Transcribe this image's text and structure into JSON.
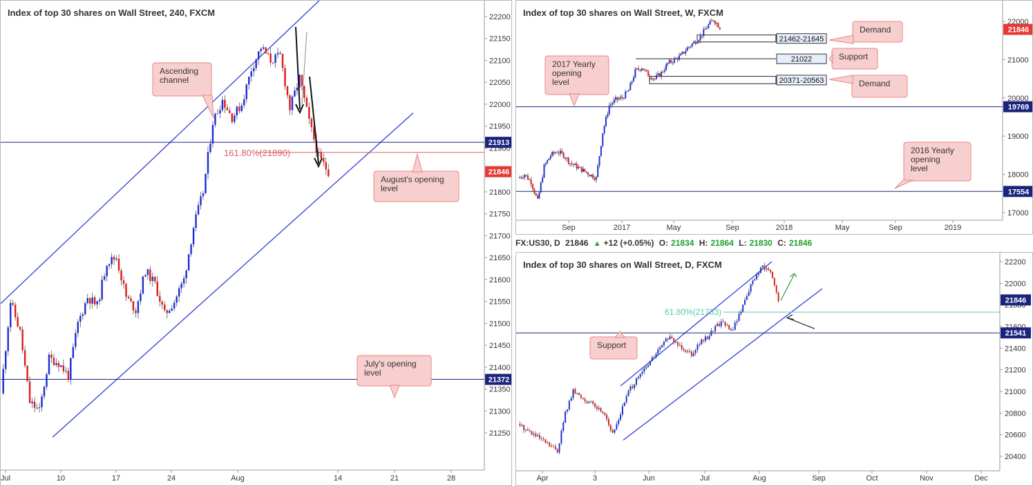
{
  "panels": {
    "h4": {
      "title": "Index of top 30 shares on Wall Street, 240, FXCM",
      "price_ticks": [
        "22200",
        "22150",
        "22100",
        "22050",
        "22000",
        "21950",
        "21900",
        "21850",
        "21800",
        "21750",
        "21700",
        "21650",
        "21600",
        "21550",
        "21500",
        "21450",
        "21400",
        "21350",
        "21300",
        "21250"
      ],
      "time_ticks": [
        "Jul",
        "10",
        "17",
        "24",
        "Aug",
        "14",
        "21",
        "28"
      ],
      "levels": [
        {
          "label": "21913",
          "color": "#1a237e"
        },
        {
          "label": "21846",
          "color": "#e53935"
        },
        {
          "label": "21372",
          "color": "#1a237e"
        }
      ],
      "fib_label": "161.80%(21890)",
      "annotations": {
        "ascending_channel": "Ascending channel",
        "august_open": "August's opening level",
        "july_open": "July's opening level"
      }
    },
    "weekly": {
      "title": "Index of top 30 shares on Wall Street, W, FXCM",
      "price_ticks": [
        "22000",
        "21000",
        "20000",
        "19000",
        "18000",
        "17000"
      ],
      "time_ticks": [
        "Sep",
        "2017",
        "May",
        "Sep",
        "2018",
        "May",
        "Sep",
        "2019"
      ],
      "levels": [
        {
          "label": "21846",
          "color": "#e53935"
        },
        {
          "label": "19769",
          "color": "#1a237e"
        },
        {
          "label": "17554",
          "color": "#1a237e"
        }
      ],
      "zone_labels": [
        "21462-21645",
        "21022",
        "20371-20563"
      ],
      "annotations": {
        "demand_top": "Demand",
        "support": "Support",
        "demand_low": "Demand",
        "y2017": "2017 Yearly opening level",
        "y2016": "2016 Yearly opening level"
      }
    },
    "daily": {
      "title": "Index of top 30 shares on Wall Street, D, FXCM",
      "price_ticks": [
        "22200",
        "22000",
        "21800",
        "21600",
        "21400",
        "21200",
        "21000",
        "20800",
        "20600",
        "20400"
      ],
      "time_ticks": [
        "Apr",
        "3",
        "Jun",
        "Jul",
        "Aug",
        "Sep",
        "Oct",
        "Nov",
        "Dec"
      ],
      "levels": [
        {
          "label": "21846",
          "color": "#1a237e"
        },
        {
          "label": "21541",
          "color": "#1a237e"
        }
      ],
      "fib_label": "61.80%(21733)",
      "annotations": {
        "support": "Support"
      }
    }
  },
  "quote_bar": {
    "symbol": "FX:US30, D",
    "price": "21846",
    "change": "+12 (+0.05%)",
    "o_label": "O:",
    "o": "21834",
    "h_label": "H:",
    "h": "21864",
    "l_label": "L:",
    "l": "21830",
    "c_label": "C:",
    "c": "21846",
    "change_icon": "triangle-up-icon"
  },
  "colors": {
    "up": "#1b2fd6",
    "down": "#e01b1b",
    "level": "#1a237e",
    "channel": "#2d3ed8",
    "fib_red": "#e06060",
    "fib_green": "#55c9a6",
    "callout_fill": "#f8cfcf",
    "callout_stroke": "#e88585"
  },
  "chart_data": [
    {
      "type": "candlestick",
      "title": "Index of top 30 shares on Wall Street, 240, FXCM",
      "timeframe": "240",
      "ylim": [
        21220,
        22230
      ],
      "last_price": 21846,
      "horizontal_levels": [
        21913,
        21846,
        21372
      ],
      "fibonacci": {
        "label": "161.80%(21890)",
        "value": 21890
      },
      "ohlc_path": [
        21340,
        21550,
        21480,
        21320,
        21300,
        21420,
        21410,
        21380,
        21500,
        21560,
        21540,
        21640,
        21650,
        21560,
        21530,
        21620,
        21590,
        21520,
        21550,
        21600,
        21720,
        21800,
        21960,
        22010,
        21970,
        22000,
        22080,
        22130,
        22100,
        22110,
        21990,
        22060,
        21960,
        21880,
        21846
      ]
    },
    {
      "type": "candlestick",
      "title": "Index of top 30 shares on Wall Street, W, FXCM",
      "timeframe": "W",
      "ylim": [
        16700,
        22300
      ],
      "last_price": 21846,
      "horizontal_levels": [
        19769,
        17554
      ],
      "zones": [
        {
          "label": "21462-21645",
          "low": 21462,
          "high": 21645
        },
        {
          "label": "21022",
          "value": 21022
        },
        {
          "label": "20371-20563",
          "low": 20371,
          "high": 20563
        }
      ],
      "close_path": [
        17900,
        18000,
        17800,
        17300,
        18200,
        18500,
        18600,
        18500,
        18300,
        18200,
        18100,
        18000,
        17900,
        19100,
        19800,
        19950,
        20000,
        20200,
        20700,
        20800,
        20600,
        20500,
        20650,
        20900,
        21000,
        21100,
        21300,
        21450,
        21600,
        21850,
        22050,
        21846
      ]
    },
    {
      "type": "candlestick",
      "title": "Index of top 30 shares on Wall Street, D, FXCM",
      "timeframe": "D",
      "ylim": [
        20300,
        22250
      ],
      "last_price": 21846,
      "horizontal_levels": [
        21846,
        21541
      ],
      "fibonacci": {
        "label": "61.80%(21733)",
        "value": 21733
      },
      "close_path": [
        20700,
        20650,
        20600,
        20550,
        20500,
        20450,
        20800,
        21000,
        20950,
        20900,
        20850,
        20800,
        20600,
        20800,
        21000,
        21100,
        21200,
        21300,
        21400,
        21500,
        21450,
        21400,
        21350,
        21450,
        21500,
        21600,
        21650,
        21550,
        21700,
        21900,
        22050,
        22150,
        22100,
        21846
      ]
    }
  ]
}
